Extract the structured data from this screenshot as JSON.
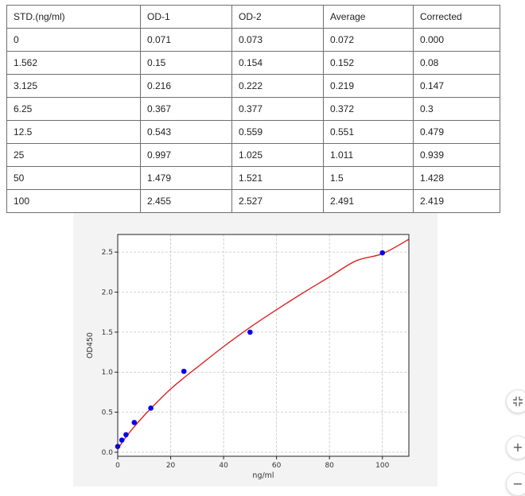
{
  "table": {
    "headers": [
      "STD.(ng/ml)",
      "OD-1",
      "OD-2",
      "Average",
      "Corrected"
    ],
    "rows": [
      [
        "0",
        "0.071",
        "0.073",
        "0.072",
        "0.000"
      ],
      [
        "1.562",
        "0.15",
        "0.154",
        "0.152",
        "0.08"
      ],
      [
        "3.125",
        "0.216",
        "0.222",
        "0.219",
        "0.147"
      ],
      [
        "6.25",
        "0.367",
        "0.377",
        "0.372",
        "0.3"
      ],
      [
        "12.5",
        "0.543",
        "0.559",
        "0.551",
        "0.479"
      ],
      [
        "25",
        "0.997",
        "1.025",
        "1.011",
        "0.939"
      ],
      [
        "50",
        "1.479",
        "1.521",
        "1.5",
        "1.428"
      ],
      [
        "100",
        "2.455",
        "2.527",
        "2.491",
        "2.419"
      ]
    ]
  },
  "chart_data": {
    "type": "scatter",
    "title": "",
    "xlabel": "ng/ml",
    "ylabel": "OD450",
    "xlim": [
      0,
      110
    ],
    "ylim": [
      -0.05,
      2.72
    ],
    "xticks": [
      0,
      20,
      40,
      60,
      80,
      100
    ],
    "yticks": [
      0.0,
      0.5,
      1.0,
      1.5,
      2.0,
      2.5
    ],
    "xtick_labels": [
      "0",
      "20",
      "40",
      "60",
      "80",
      "100"
    ],
    "ytick_labels": [
      "0.0",
      "0.5",
      "1.0",
      "1.5",
      "2.0",
      "2.5"
    ],
    "grid": true,
    "points": {
      "x": [
        0,
        1.562,
        3.125,
        6.25,
        12.5,
        25,
        50,
        100
      ],
      "y": [
        0.072,
        0.152,
        0.219,
        0.372,
        0.551,
        1.011,
        1.5,
        2.491
      ]
    },
    "fit_curve": {
      "x": [
        0,
        2,
        5,
        10,
        15,
        20,
        25,
        30,
        40,
        50,
        60,
        70,
        80,
        90,
        100,
        110
      ],
      "y": [
        0.04,
        0.14,
        0.27,
        0.46,
        0.63,
        0.79,
        0.93,
        1.06,
        1.32,
        1.56,
        1.78,
        1.99,
        2.19,
        2.39,
        2.48,
        2.66
      ]
    },
    "colors": {
      "points": "#0000ee",
      "curve": "#dd2222",
      "plot_background": "#ffffff",
      "panel_background": "#f3f3f3",
      "grid": "#c4c4c4"
    }
  },
  "controls": {
    "fit_icon": "fit-to-page-icon",
    "zoom_in_icon": "plus-icon",
    "zoom_in_symbol": "+",
    "zoom_out_icon": "minus-icon",
    "zoom_out_symbol": "−"
  }
}
